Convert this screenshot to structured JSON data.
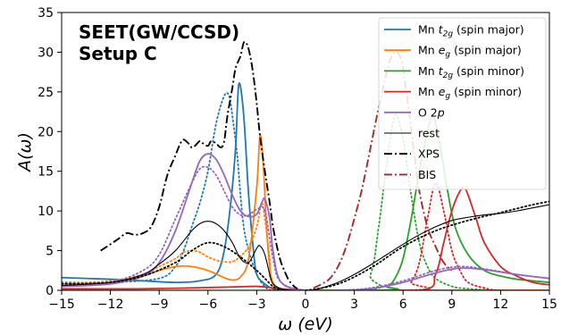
{
  "chart_data": {
    "type": "line",
    "title_lines": [
      "SEET(GW/CCSD)",
      "Setup C"
    ],
    "xlabel": "ω (eV)",
    "ylabel": "A(ω)",
    "xlim": [
      -15,
      15
    ],
    "ylim": [
      0,
      35
    ],
    "x_ticks": [
      -15,
      -12,
      -9,
      -6,
      -3,
      0,
      3,
      6,
      9,
      12,
      15
    ],
    "x_tick_labels": [
      "−15",
      "−12",
      "−9",
      "−6",
      "−3",
      "0",
      "3",
      "6",
      "9",
      "12",
      "15"
    ],
    "y_ticks": [
      0,
      5,
      10,
      15,
      20,
      25,
      30,
      35
    ],
    "y_tick_labels": [
      "0",
      "5",
      "10",
      "15",
      "20",
      "25",
      "30",
      "35"
    ],
    "legend_position": "top-right",
    "legend": [
      {
        "text": "Mn t2g (spin major)",
        "color": "#1f77b4",
        "dash": "solid"
      },
      {
        "text": "Mn eg (spin major)",
        "color": "#ff7f0e",
        "dash": "solid"
      },
      {
        "text": "Mn t2g (spin minor)",
        "color": "#2ca02c",
        "dash": "solid"
      },
      {
        "text": "Mn eg (spin minor)",
        "color": "#d62728",
        "dash": "solid"
      },
      {
        "text": "O 2p",
        "color": "#9467bd",
        "dash": "solid"
      },
      {
        "text": "rest",
        "color": "#000000",
        "dash": "thin"
      },
      {
        "text": "XPS",
        "color": "#000000",
        "dash": "dashdot"
      },
      {
        "text": "BIS",
        "color": "#a52a2a",
        "dash": "dashdot"
      }
    ],
    "series": [
      {
        "name": "Mn t2g (spin major)",
        "color": "#1f77b4",
        "style": "solid",
        "x": [
          -15,
          -12,
          -10,
          -8,
          -6.5,
          -5.5,
          -5,
          -4.6,
          -4.3,
          -4.1,
          -3.8,
          -3.5,
          -3.2,
          -3,
          -2.5,
          -2,
          -1.5,
          0,
          15
        ],
        "y": [
          1.6,
          1.4,
          1.2,
          1.0,
          1.2,
          2.0,
          5.0,
          11.0,
          18.0,
          26.0,
          22.0,
          12.0,
          5.0,
          2.0,
          0.8,
          0.2,
          0,
          0,
          0
        ]
      },
      {
        "name": "Mn t2g (spin major)",
        "color": "#1f77b4",
        "style": "dotted",
        "x": [
          -15,
          -12,
          -9,
          -8,
          -7.5,
          -7,
          -6.5,
          -6,
          -5.5,
          -5,
          -4.7,
          -4.5,
          -4.2,
          -4,
          -3.8,
          -3.5,
          -3,
          -2.5,
          -2,
          0,
          15
        ],
        "y": [
          1,
          1,
          1.5,
          3,
          5,
          8,
          11,
          15,
          21,
          24.5,
          24.5,
          22,
          17,
          12,
          8,
          5,
          2,
          0.5,
          0,
          0,
          0
        ]
      },
      {
        "name": "Mn eg (spin major)",
        "color": "#ff7f0e",
        "style": "solid",
        "x": [
          -15,
          -12,
          -10,
          -9,
          -8,
          -7,
          -6,
          -5,
          -4.5,
          -4,
          -3.5,
          -3,
          -2.8,
          -2.6,
          -2.4,
          -2.2,
          -2,
          -1.5,
          0,
          15
        ],
        "y": [
          0.8,
          1.0,
          1.8,
          2.5,
          3.0,
          3.0,
          2.5,
          1.6,
          1.3,
          1.7,
          4.0,
          13.0,
          19.5,
          16.0,
          8.0,
          3.0,
          1.0,
          0.2,
          0,
          0
        ]
      },
      {
        "name": "Mn eg (spin major)",
        "color": "#ff7f0e",
        "style": "dotted",
        "x": [
          -15,
          -12,
          -10,
          -9,
          -8,
          -7.5,
          -7,
          -6.5,
          -6,
          -5.5,
          -5,
          -4.5,
          -4,
          -3.5,
          -3,
          -2.7,
          -2.5,
          -2.2,
          -2,
          0,
          15
        ],
        "y": [
          0.8,
          1.2,
          2.0,
          3.0,
          4.0,
          4.8,
          5.0,
          4.8,
          4.2,
          3.8,
          3.6,
          3.6,
          4.3,
          5.5,
          8.0,
          11.0,
          9.0,
          4.0,
          1.0,
          0,
          0
        ]
      },
      {
        "name": "Mn t2g (spin minor)",
        "color": "#2ca02c",
        "style": "solid",
        "x": [
          -15,
          4,
          5,
          5.5,
          6,
          6.5,
          7,
          7.5,
          7.8,
          8,
          8.3,
          8.7,
          9.2,
          10,
          11,
          12,
          13,
          15
        ],
        "y": [
          0,
          0,
          0.5,
          1.5,
          4,
          9,
          15,
          20,
          22,
          21,
          18,
          13,
          8,
          4.5,
          2.5,
          1.8,
          1.4,
          1.0
        ]
      },
      {
        "name": "Mn t2g (spin minor)",
        "color": "#2ca02c",
        "style": "dotted",
        "x": [
          -15,
          3,
          4,
          4.5,
          5,
          5.5,
          6,
          6.5,
          7,
          7.5,
          8,
          9,
          10,
          12,
          15
        ],
        "y": [
          0,
          0,
          2,
          8,
          16,
          22,
          19,
          12,
          6,
          3,
          1.5,
          0.5,
          0.2,
          0,
          0
        ]
      },
      {
        "name": "Mn eg (spin minor)",
        "color": "#d62728",
        "style": "solid",
        "x": [
          -15,
          -10,
          -5,
          -3,
          -2,
          -1,
          0,
          7,
          8,
          8.5,
          9,
          9.5,
          9.8,
          10,
          10.5,
          11,
          12,
          13,
          14,
          15
        ],
        "y": [
          0.2,
          0.2,
          0.4,
          0.5,
          0.3,
          0.1,
          0,
          0,
          2,
          6,
          10,
          12.5,
          12.8,
          12,
          9,
          6,
          3,
          1.8,
          1.0,
          0.7
        ]
      },
      {
        "name": "Mn eg (spin minor)",
        "color": "#d62728",
        "style": "dotted",
        "x": [
          -15,
          6,
          6.5,
          7,
          7.5,
          8,
          8.5,
          9,
          9.5,
          10,
          11,
          12,
          15
        ],
        "y": [
          0,
          0,
          1,
          3.5,
          9,
          13.5,
          10,
          5,
          2.5,
          1,
          0.3,
          0,
          0
        ]
      },
      {
        "name": "O 2p",
        "color": "#9467bd",
        "style": "solid",
        "x": [
          -15,
          -12,
          -10,
          -9,
          -8,
          -7,
          -6.5,
          -6,
          -5.5,
          -5,
          -4.5,
          -4,
          -3.5,
          -3,
          -2.7,
          -2.5,
          -2.2,
          -2,
          -1.5,
          0,
          2,
          4,
          6,
          8,
          9.5,
          11,
          13,
          15
        ],
        "y": [
          0.5,
          0.8,
          1.8,
          3.5,
          7.5,
          13.5,
          16.3,
          17.2,
          16.5,
          14.5,
          12,
          10,
          9.3,
          9.6,
          11.0,
          11.5,
          9,
          5,
          1,
          0,
          0,
          0.2,
          1,
          2.2,
          2.8,
          2.6,
          2.0,
          1.5
        ]
      },
      {
        "name": "O 2p",
        "color": "#9467bd",
        "style": "dotted",
        "x": [
          -15,
          -12,
          -10,
          -9,
          -8,
          -7,
          -6.5,
          -6,
          -5.5,
          -5,
          -4.5,
          -4,
          -3.5,
          -3,
          -2.5,
          -2,
          -1.5,
          0,
          2,
          4,
          6,
          8,
          9.5,
          11,
          13,
          15
        ],
        "y": [
          0.5,
          1.0,
          2.5,
          4.5,
          9.0,
          13.5,
          15.3,
          15.5,
          14.5,
          12.5,
          10.5,
          9.5,
          9.5,
          10.2,
          10.0,
          4.0,
          1.0,
          0,
          0,
          0.3,
          1.2,
          2.5,
          3.0,
          2.7,
          2.0,
          1.5
        ]
      },
      {
        "name": "rest",
        "color": "#000000",
        "style": "solid",
        "x": [
          -15,
          -12,
          -10,
          -9,
          -8,
          -7,
          -6.5,
          -6,
          -5.5,
          -5,
          -4.5,
          -4,
          -3.5,
          -3,
          -2.8,
          -2.5,
          -2.2,
          -2,
          -1.5,
          -1,
          0,
          0.5,
          1,
          2,
          3,
          4,
          5,
          6,
          7,
          8,
          9,
          10,
          11,
          12,
          13,
          14,
          15
        ],
        "y": [
          0.6,
          1.0,
          2.0,
          3.3,
          5.0,
          7.5,
          8.4,
          8.7,
          8.4,
          7.5,
          6.0,
          4.0,
          3.5,
          5.3,
          5.6,
          4.5,
          2.0,
          0.8,
          0.2,
          0,
          0,
          0.05,
          0.3,
          1.0,
          2.0,
          3.2,
          4.5,
          5.8,
          7.0,
          8.0,
          8.8,
          9.2,
          9.5,
          9.7,
          10.0,
          10.4,
          10.8
        ]
      },
      {
        "name": "rest",
        "color": "#000000",
        "style": "dotted",
        "x": [
          -15,
          -12,
          -10,
          -8,
          -7,
          -6,
          -5,
          -4,
          -3,
          -2.5,
          -2,
          -1.5,
          0,
          2,
          4,
          6,
          8,
          10,
          12,
          13,
          14,
          15
        ],
        "y": [
          0.8,
          1.0,
          1.8,
          3.5,
          5.0,
          6.0,
          5.5,
          4.2,
          2.5,
          1.5,
          0.5,
          0.1,
          0,
          0.8,
          2.8,
          5.5,
          7.5,
          8.8,
          9.8,
          10.3,
          10.8,
          11.2
        ]
      },
      {
        "name": "XPS",
        "color": "#000000",
        "style": "dashdot",
        "x": [
          -12.6,
          -12,
          -11.5,
          -11,
          -10.5,
          -10,
          -9.5,
          -9,
          -8.5,
          -8,
          -7.7,
          -7.5,
          -7.2,
          -7,
          -6.8,
          -6.5,
          -6.3,
          -6,
          -5.8,
          -5.5,
          -5.2,
          -5,
          -4.8,
          -4.5,
          -4.3,
          -4,
          -3.8,
          -3.6,
          -3.4,
          -3.2,
          -3,
          -2.8,
          -2.5,
          -2.2,
          -2,
          -1.7,
          -1.5,
          -1.2,
          -1,
          -0.7,
          -0.5
        ],
        "y": [
          5.0,
          5.8,
          6.5,
          7.2,
          7.0,
          7.2,
          8.0,
          10.5,
          14.5,
          17.0,
          18.5,
          19.0,
          18.5,
          18.0,
          18.2,
          18.8,
          18.5,
          18.2,
          18.8,
          18.5,
          18.0,
          18.8,
          22.0,
          25.5,
          28.0,
          29.5,
          31.2,
          31.0,
          29.5,
          27.0,
          23.5,
          19.5,
          15.0,
          11.0,
          8.0,
          5.0,
          3.5,
          2.0,
          1.2,
          0.5,
          0.2
        ]
      },
      {
        "name": "BIS",
        "color": "#a52a2a",
        "style": "dashdot",
        "x": [
          0.5,
          1,
          1.5,
          2,
          2.5,
          3,
          3.5,
          4,
          4.5,
          5,
          5.3,
          5.6,
          5.9,
          6.1,
          6.4,
          6.7,
          7,
          7.5,
          8,
          8.5,
          9
        ],
        "y": [
          0.3,
          0.8,
          1.5,
          3,
          5.5,
          9,
          13,
          18,
          23,
          27.5,
          29.5,
          30.0,
          29.0,
          26.5,
          22.0,
          17.0,
          12.5,
          8.0,
          5.5,
          3.5,
          2.5
        ]
      }
    ]
  }
}
